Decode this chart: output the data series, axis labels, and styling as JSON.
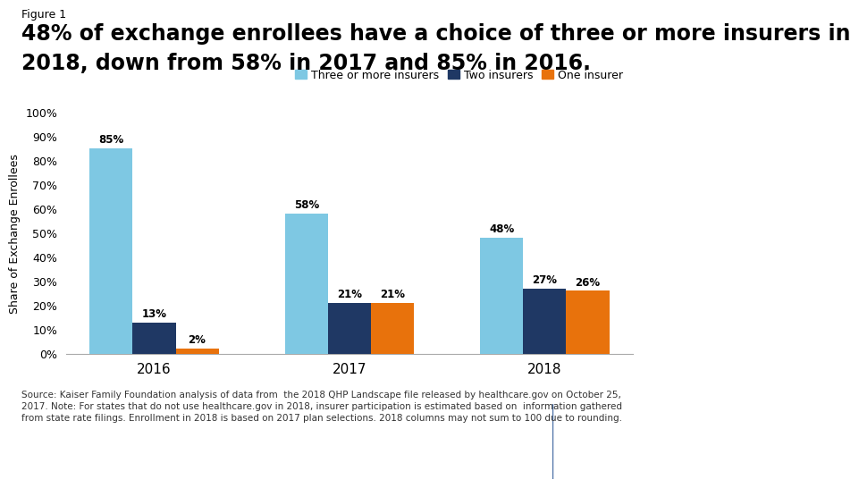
{
  "figure_label": "Figure 1",
  "title_line1": "48% of exchange enrollees have a choice of three or more insurers in",
  "title_line2": "2018, down from 58% in 2017 and 85% in 2016.",
  "years": [
    "2016",
    "2017",
    "2018"
  ],
  "series": {
    "Three or more insurers": [
      85,
      58,
      48
    ],
    "Two insurers": [
      13,
      21,
      27
    ],
    "One insurer": [
      2,
      21,
      26
    ]
  },
  "colors": {
    "Three or more insurers": "#7EC8E3",
    "Two insurers": "#1F3864",
    "One insurer": "#E8720C"
  },
  "bar_width": 0.22,
  "ylabel": "Share of Exchange Enrollees",
  "ylim": [
    0,
    100
  ],
  "yticks": [
    0,
    10,
    20,
    30,
    40,
    50,
    60,
    70,
    80,
    90,
    100
  ],
  "ytick_labels": [
    "0%",
    "10%",
    "20%",
    "30%",
    "40%",
    "50%",
    "60%",
    "70%",
    "80%",
    "90%",
    "100%"
  ],
  "source_text": "Source: Kaiser Family Foundation analysis of data from  the 2018 QHP Landscape file released by healthcare.gov on October 25,\n2017. Note: For states that do not use healthcare.gov in 2018, insurer participation is estimated based on  information gathered\nfrom state rate filings. Enrollment in 2018 is based on 2017 plan selections. 2018 columns may not sum to 100 due to rounding.",
  "background_color": "#FFFFFF",
  "bar_label_fontsize": 8.5,
  "axis_fontsize": 9,
  "title_fontsize": 17,
  "figure_label_fontsize": 9,
  "source_fontsize": 7.5,
  "legend_fontsize": 9,
  "xtick_fontsize": 11
}
